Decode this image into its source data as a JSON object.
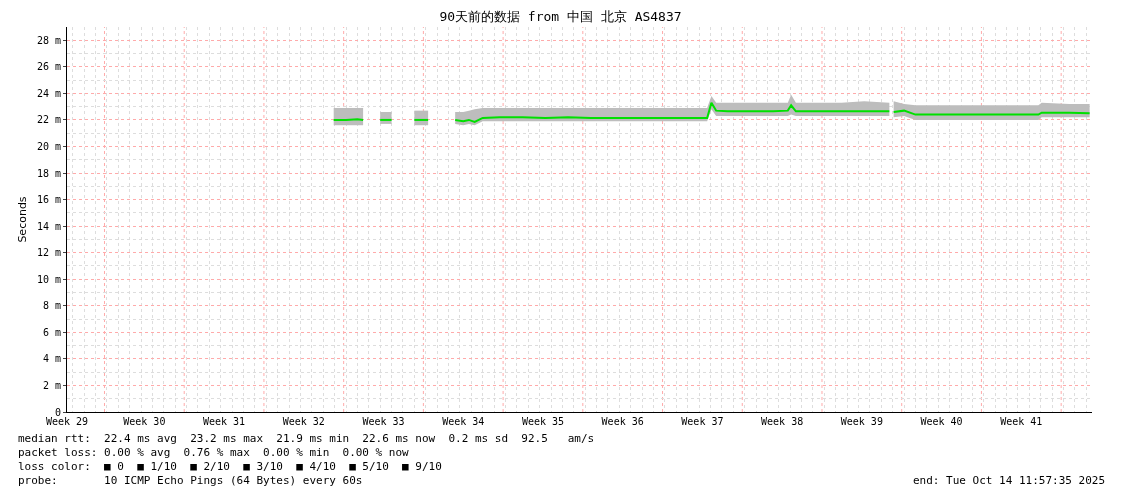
{
  "chart_data": {
    "type": "line",
    "title": "90天前的数据 from 中国 北京 AS4837",
    "ylabel": "Seconds",
    "xlim": [
      "2025-07-16T12:00",
      "2025-10-14T12:00"
    ],
    "ylim": [
      0,
      29
    ],
    "xticks": [
      {
        "value": "2025-07-16T12:00",
        "label": "Week 29"
      },
      {
        "value": "2025-07-19T19:00",
        "label": null
      },
      {
        "value": "2025-07-23T07:00",
        "label": "Week 30"
      },
      {
        "value": "2025-07-26T19:00",
        "label": null
      },
      {
        "value": "2025-07-30T07:00",
        "label": "Week 31"
      },
      {
        "value": "2025-08-02T19:00",
        "label": null
      },
      {
        "value": "2025-08-06T07:00",
        "label": "Week 32"
      },
      {
        "value": "2025-08-09T19:00",
        "label": null
      },
      {
        "value": "2025-08-13T07:00",
        "label": "Week 33"
      },
      {
        "value": "2025-08-16T19:00",
        "label": null
      },
      {
        "value": "2025-08-20T07:00",
        "label": "Week 34"
      },
      {
        "value": "2025-08-23T19:00",
        "label": null
      },
      {
        "value": "2025-08-27T07:00",
        "label": "Week 35"
      },
      {
        "value": "2025-08-30T19:00",
        "label": null
      },
      {
        "value": "2025-09-03T07:00",
        "label": "Week 36"
      },
      {
        "value": "2025-09-06T19:00",
        "label": null
      },
      {
        "value": "2025-09-10T07:00",
        "label": "Week 37"
      },
      {
        "value": "2025-09-13T19:00",
        "label": null
      },
      {
        "value": "2025-09-17T07:00",
        "label": "Week 38"
      },
      {
        "value": "2025-09-20T19:00",
        "label": null
      },
      {
        "value": "2025-09-24T07:00",
        "label": "Week 39"
      },
      {
        "value": "2025-09-27T19:00",
        "label": null
      },
      {
        "value": "2025-10-01T07:00",
        "label": "Week 40"
      },
      {
        "value": "2025-10-04T19:00",
        "label": null
      },
      {
        "value": "2025-10-08T07:00",
        "label": "Week 41"
      },
      {
        "value": "2025-10-11T19:00",
        "label": null
      }
    ],
    "yticks": [
      0,
      {
        "value": 2,
        "label": "2 m"
      },
      {
        "value": 4,
        "label": "4 m"
      },
      {
        "value": 6,
        "label": "6 m"
      },
      {
        "value": 8,
        "label": "8 m"
      },
      {
        "value": 10,
        "label": "10 m"
      },
      {
        "value": 12,
        "label": "12 m"
      },
      {
        "value": 14,
        "label": "14 m"
      },
      {
        "value": 16,
        "label": "16 m"
      },
      {
        "value": 18,
        "label": "18 m"
      },
      {
        "value": 20,
        "label": "20 m"
      },
      {
        "value": 22,
        "label": "22 m"
      },
      {
        "value": 24,
        "label": "24 m"
      },
      {
        "value": 26,
        "label": "26 m"
      },
      {
        "value": 28,
        "label": "28 m"
      }
    ],
    "grid": true,
    "marker": "none",
    "line_style": "solid",
    "series": [
      {
        "color": "#00e000",
        "x": [
          "2025-08-13T00:00",
          "2025-08-13T12:00",
          "2025-08-14T00:00"
        ],
        "values": [
          22.0,
          22.0,
          22.0
        ],
        "lower": [
          21.7,
          21.7,
          21.7
        ],
        "upper": [
          22.6,
          22.6,
          22.6
        ]
      },
      {
        "color": "#00e000",
        "x": [
          "2025-08-08T22:00",
          "2025-08-10T00:00",
          "2025-08-11T00:00",
          "2025-08-11T12:00",
          "2025-08-12T00:00",
          "2025-08-14T00:00",
          "2025-08-16T00:00",
          "2025-08-16T14:00",
          "2025-08-17T05:00",
          "2025-08-18T00:00",
          "2025-08-19T14:00",
          "2025-08-20T07:00",
          "2025-08-20T19:00",
          "2025-08-21T07:00",
          "2025-08-22T00:00",
          "2025-08-23T12:00",
          "2025-08-25T12:00",
          "2025-08-27T12:00",
          "2025-08-29T12:00",
          "2025-08-31T12:00",
          "2025-09-02T12:00",
          "2025-09-04T12:00",
          "2025-09-06T12:00",
          "2025-09-08T12:00",
          "2025-09-10T17:00",
          "2025-09-11T02:00",
          "2025-09-11T12:00",
          "2025-09-12T12:00",
          "2025-09-14T12:00",
          "2025-09-16T12:00",
          "2025-09-17T19:00",
          "2025-09-18T02:00",
          "2025-09-18T12:00",
          "2025-09-20T12:00",
          "2025-09-22T12:00",
          "2025-09-24T12:00",
          "2025-09-26T17:00",
          "2025-09-26T22:00",
          "2025-09-27T02:00",
          "2025-09-28T00:00",
          "2025-09-29T00:00",
          "2025-09-30T12:00",
          "2025-10-04T12:00",
          "2025-10-08T12:00",
          "2025-10-09T19:00",
          "2025-10-10T02:00",
          "2025-10-12T12:00",
          "2025-10-14T07:00"
        ],
        "values": [
          22.0,
          22.0,
          22.05,
          22.0,
          null,
          null,
          22.0,
          22.0,
          22.0,
          null,
          22.0,
          21.9,
          22.0,
          21.85,
          22.15,
          22.2,
          22.2,
          22.15,
          22.2,
          22.15,
          22.15,
          22.15,
          22.15,
          22.15,
          22.15,
          23.3,
          22.7,
          22.65,
          22.65,
          22.65,
          22.7,
          23.1,
          22.65,
          22.65,
          22.65,
          22.65,
          22.65,
          null,
          22.6,
          22.7,
          22.4,
          22.4,
          22.4,
          22.4,
          22.4,
          22.55,
          22.55,
          22.5
        ],
        "lower": [
          21.6,
          21.6,
          21.6,
          21.6,
          null,
          null,
          21.6,
          21.6,
          21.6,
          null,
          21.7,
          21.6,
          21.7,
          21.6,
          21.9,
          21.9,
          21.9,
          21.9,
          21.9,
          21.9,
          21.9,
          21.9,
          21.9,
          21.9,
          21.9,
          22.8,
          22.3,
          22.3,
          22.3,
          22.3,
          22.3,
          22.4,
          22.3,
          22.3,
          22.3,
          22.3,
          22.3,
          null,
          22.2,
          22.3,
          22.0,
          22.0,
          22.0,
          22.0,
          22.0,
          22.2,
          22.2,
          22.2
        ],
        "upper": [
          22.9,
          22.9,
          22.9,
          22.9,
          null,
          null,
          22.7,
          22.7,
          22.7,
          null,
          22.6,
          22.6,
          22.7,
          22.8,
          22.9,
          22.9,
          22.9,
          22.9,
          22.9,
          22.9,
          22.9,
          22.9,
          22.9,
          22.9,
          22.9,
          23.8,
          23.3,
          23.3,
          23.3,
          23.3,
          23.3,
          23.9,
          23.3,
          23.3,
          23.3,
          23.4,
          23.3,
          null,
          23.4,
          23.2,
          23.1,
          23.1,
          23.1,
          23.1,
          23.1,
          23.3,
          23.2,
          23.2
        ]
      }
    ],
    "annotations": [
      "median rtt:  22.4 ms avg  23.2 ms max  21.9 ms min  22.6 ms now  0.2 ms sd  92.5   am/s",
      "packet loss: 0.00 % avg  0.76 % max  0.00 % min  0.00 % now",
      "loss color:  ■ 0  ■ 1/10  ■ 2/10  ■ 3/10  ■ 4/10  ■ 5/10  ■ 9/10",
      "probe:       10 ICMP Echo Pings (64 Bytes) every 60s",
      "end: Tue Oct 14 11:57:35 2025"
    ]
  }
}
